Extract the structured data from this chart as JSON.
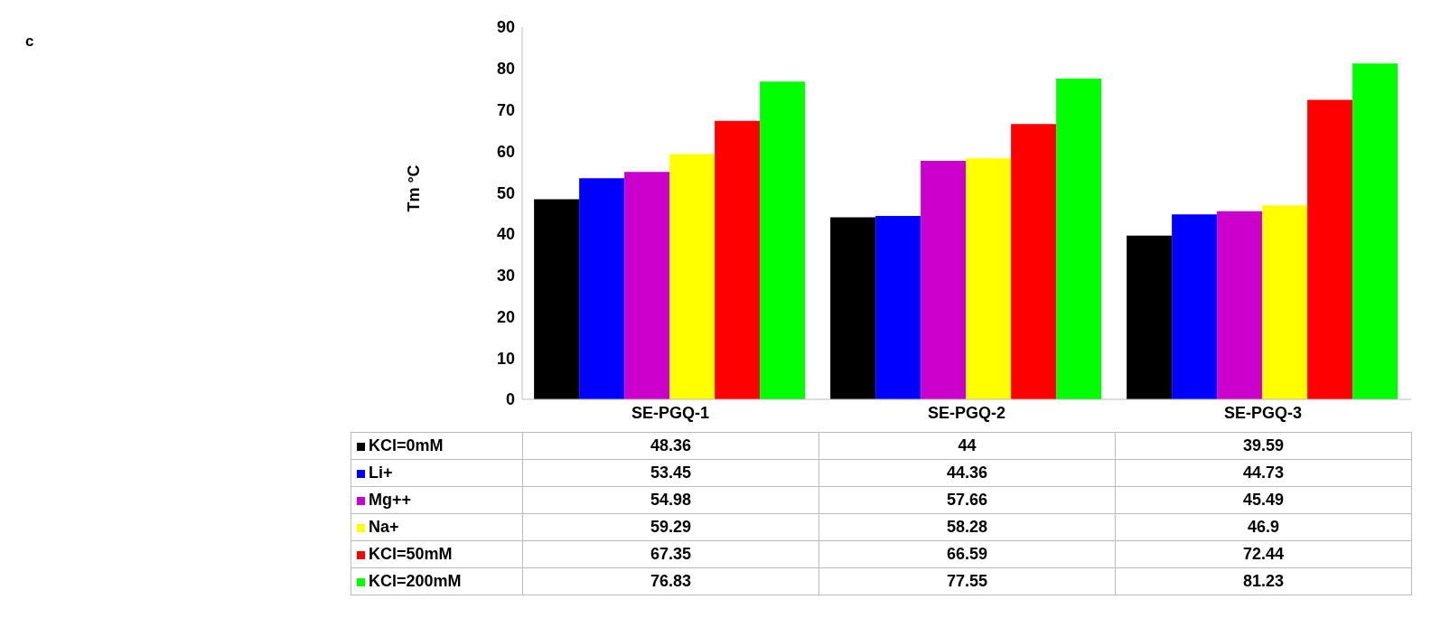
{
  "chart_data": {
    "type": "bar",
    "ylabel": "Tm °C",
    "annotations": [
      "c"
    ],
    "categories": [
      "SE-PGQ-1",
      "SE-PGQ-2",
      "SE-PGQ-3"
    ],
    "series": [
      {
        "name": "KCl=0mM",
        "color": "#000000",
        "values": [
          48.36,
          44,
          39.59
        ]
      },
      {
        "name": "Li+",
        "color": "#0000ff",
        "values": [
          53.45,
          44.36,
          44.73
        ]
      },
      {
        "name": "Mg++",
        "color": "#cc00cc",
        "values": [
          54.98,
          57.66,
          45.49
        ]
      },
      {
        "name": "Na+",
        "color": "#ffff00",
        "values": [
          59.29,
          58.28,
          46.9
        ]
      },
      {
        "name": "KCl=50mM",
        "color": "#ff0000",
        "values": [
          67.35,
          66.59,
          72.44
        ]
      },
      {
        "name": "KCl=200mM",
        "color": "#00ff00",
        "values": [
          76.83,
          77.55,
          81.23
        ]
      }
    ],
    "ylim": [
      0,
      90
    ],
    "yticks": [
      0,
      10,
      20,
      30,
      40,
      50,
      60,
      70,
      80,
      90
    ],
    "data_labels": true,
    "legend": "bottom"
  }
}
